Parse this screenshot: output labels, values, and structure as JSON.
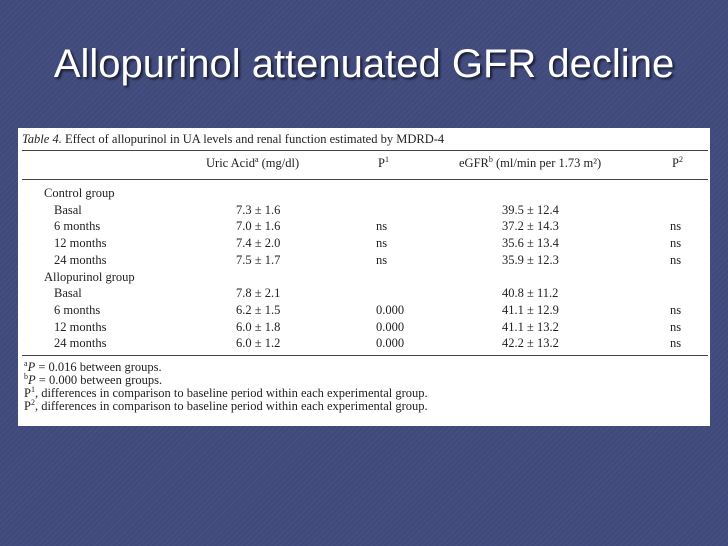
{
  "slide": {
    "title": "Allopurinol attenuated GFR decline"
  },
  "table": {
    "caption_label": "Table 4.",
    "caption_text": "Effect of allopurinol in UA levels and renal function estimated by MDRD-4",
    "headers": {
      "uric_acid": "Uric Acid",
      "uric_acid_sup": "a",
      "uric_acid_unit": "(mg/dl)",
      "p1": "P",
      "p1_sup": "1",
      "egfr": "eGFR",
      "egfr_sup": "b",
      "egfr_unit": "(ml/min per 1.73 m²)",
      "p2": "P",
      "p2_sup": "2"
    },
    "groups": [
      {
        "name": "Control group",
        "rows": [
          {
            "label": "Basal",
            "ua": "7.3 ± 1.6",
            "p1": "",
            "egfr": "39.5 ± 12.4",
            "p2": ""
          },
          {
            "label": "6 months",
            "ua": "7.0 ± 1.6",
            "p1": "ns",
            "egfr": "37.2 ± 14.3",
            "p2": "ns"
          },
          {
            "label": "12 months",
            "ua": "7.4 ± 2.0",
            "p1": "ns",
            "egfr": "35.6 ± 13.4",
            "p2": "ns"
          },
          {
            "label": "24 months",
            "ua": "7.5 ± 1.7",
            "p1": "ns",
            "egfr": "35.9 ± 12.3",
            "p2": "ns"
          }
        ]
      },
      {
        "name": "Allopurinol group",
        "rows": [
          {
            "label": "Basal",
            "ua": "7.8 ± 2.1",
            "p1": "",
            "egfr": "40.8 ± 11.2",
            "p2": ""
          },
          {
            "label": "6 months",
            "ua": "6.2 ± 1.5",
            "p1": "0.000",
            "egfr": "41.1 ± 12.9",
            "p2": "ns"
          },
          {
            "label": "12 months",
            "ua": "6.0 ± 1.8",
            "p1": "0.000",
            "egfr": "41.1 ± 13.2",
            "p2": "ns"
          },
          {
            "label": "24 months",
            "ua": "6.0 ± 1.2",
            "p1": "0.000",
            "egfr": "42.2 ± 13.2",
            "p2": "ns"
          }
        ]
      }
    ],
    "footnotes": [
      {
        "mark": "a",
        "text": "P = 0.016 between groups."
      },
      {
        "mark": "b",
        "text": "P = 0.000 between groups."
      },
      {
        "mark": "P1",
        "text": "P1, differences in comparison to baseline period within each experimental group."
      },
      {
        "mark": "P2",
        "text": "P2, differences in comparison to baseline period within each experimental group."
      }
    ]
  }
}
